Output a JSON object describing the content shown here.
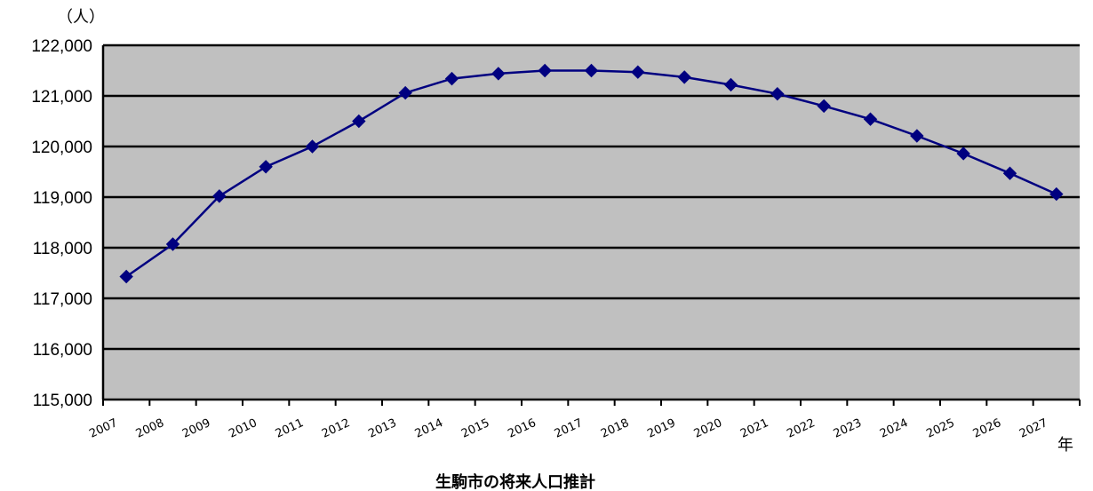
{
  "chart_data": {
    "type": "line",
    "title": "",
    "caption": "生駒市の将来人口推計",
    "ylabel": "（人）",
    "xlabel": "年",
    "ylim": [
      115000,
      122000
    ],
    "yticks": [
      "115,000",
      "116,000",
      "117,000",
      "118,000",
      "119,000",
      "120,000",
      "121,000",
      "122,000"
    ],
    "grid": true,
    "categories": [
      "2007",
      "2008",
      "2009",
      "2010",
      "2011",
      "2012",
      "2013",
      "2014",
      "2015",
      "2016",
      "2017",
      "2018",
      "2019",
      "2020",
      "2021",
      "2022",
      "2023",
      "2024",
      "2025",
      "2026",
      "2027"
    ],
    "series": [
      {
        "values": [
          117430,
          118070,
          119020,
          119600,
          120000,
          120500,
          121060,
          121340,
          121440,
          121500,
          121500,
          121470,
          121370,
          121220,
          121040,
          120800,
          120540,
          120210,
          119860,
          119470,
          119060
        ],
        "color": "#000080"
      }
    ],
    "plot_background": "#c0c0c0"
  }
}
